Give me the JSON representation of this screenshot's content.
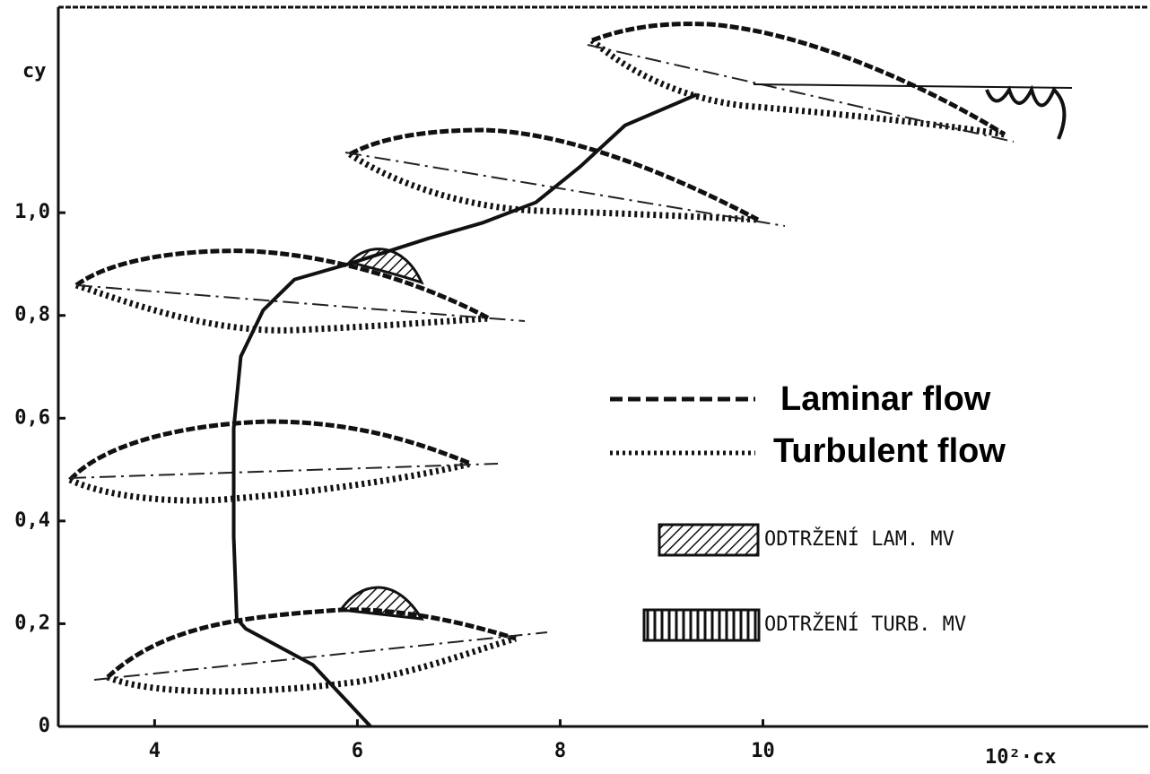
{
  "chart_data": {
    "type": "line",
    "y_label": "cy",
    "x_label": "10²·cx",
    "x": [
      6.13,
      5.56,
      4.9,
      4.81,
      4.78,
      4.78,
      4.85,
      5.07,
      5.38,
      5.91,
      6.7,
      7.23,
      7.76,
      8.2,
      8.64,
      9.35
    ],
    "values": [
      0.0,
      0.12,
      0.19,
      0.21,
      0.37,
      0.58,
      0.72,
      0.81,
      0.87,
      0.9,
      0.95,
      0.98,
      1.02,
      1.09,
      1.17,
      1.23
    ],
    "color": "#111111",
    "xlim": [
      3.05,
      13.8
    ],
    "ylim": [
      0,
      1.4
    ],
    "xticks": [
      4,
      6,
      8,
      10
    ],
    "yticks": [
      0,
      {
        "value": 0.2,
        "label": "0,2"
      },
      {
        "value": 0.4,
        "label": "0,4"
      },
      {
        "value": 0.6,
        "label": "0,6"
      },
      {
        "value": 0.8,
        "label": "0,8"
      },
      {
        "value": 1.0,
        "label": "1,0"
      }
    ],
    "legend": [
      "Laminar flow",
      "Turbulent flow",
      "ODTRŽENÍ LAM. MV",
      "ODTRŽENÍ TURB. MV"
    ]
  }
}
